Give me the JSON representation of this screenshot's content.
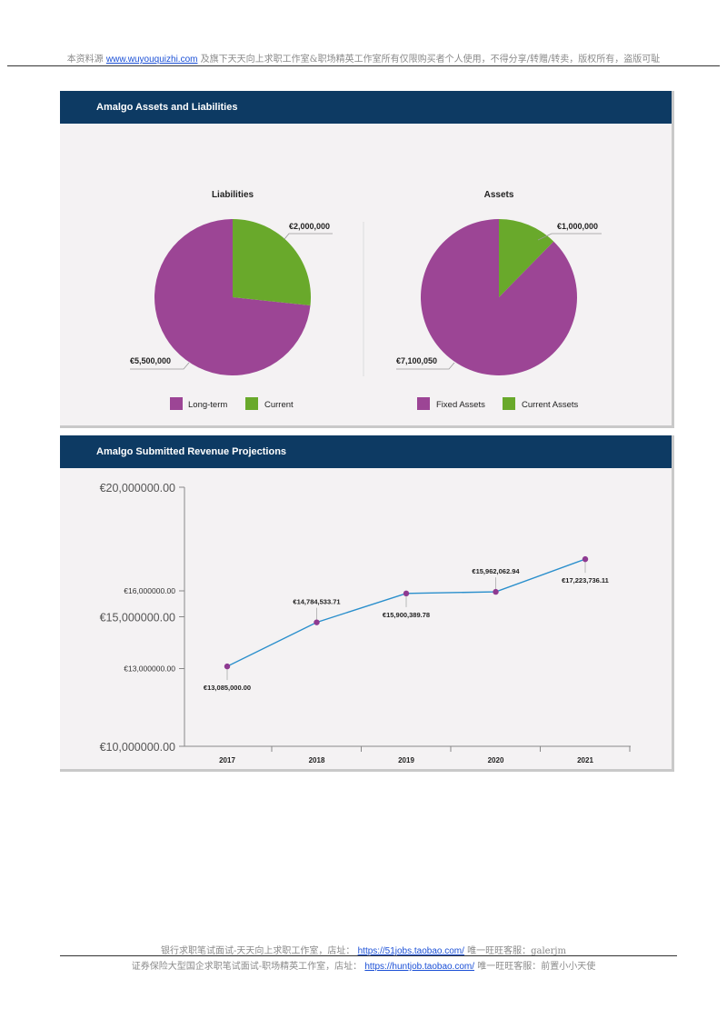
{
  "page_header": {
    "text_before": "本资料源",
    "link": "www.wuyouquizhi.com",
    "text_after": "及旗下天天向上求职工作室&职场精英工作室所有仅限购买者个人使用，不得分享/转赠/转卖，版权所有，盗版可耻"
  },
  "panel1": {
    "title": "Amalgo  Assets and Liabilities"
  },
  "panel2": {
    "title": "Amalgo Submitted Revenue Projections"
  },
  "chart_data": [
    {
      "type": "pie",
      "title": "Liabilities",
      "slices": [
        {
          "label": "Long-term",
          "value": 5500000,
          "display": "€5,500,000",
          "color": "#9c4595"
        },
        {
          "label": "Current",
          "value": 2000000,
          "display": "€2,000,000",
          "color": "#69a92b"
        }
      ],
      "legend": [
        "Long-term",
        "Current"
      ],
      "legend_position": "bottom"
    },
    {
      "type": "pie",
      "title": "Assets",
      "slices": [
        {
          "label": "Fixed Assets",
          "value": 7100050,
          "display": "€7,100,050",
          "color": "#9c4595"
        },
        {
          "label": "Current Assets",
          "value": 1000000,
          "display": "€1,000,000",
          "color": "#69a92b"
        }
      ],
      "legend": [
        "Fixed Assets",
        "Current Assets"
      ],
      "legend_position": "bottom"
    },
    {
      "type": "line",
      "x": [
        "2017",
        "2018",
        "2019",
        "2020",
        "2021"
      ],
      "series": [
        {
          "values": [
            13085000.0,
            14784533.71,
            15900389.78,
            15962062.94,
            17223736.11
          ],
          "labels": [
            "€13,085,000.00",
            "€14,784,533.71",
            "€15,900,389.78",
            "€15,962,062.94",
            "€17,223,736.11"
          ],
          "line_color": "#2a8fcc",
          "marker_color": "#8e3a91"
        }
      ],
      "y_ticks": [
        {
          "value": 10000000,
          "label": "€10,000000.00"
        },
        {
          "value": 13000000,
          "label": "€13,000000.00"
        },
        {
          "value": 15000000,
          "label": "€15,000000.00"
        },
        {
          "value": 16000000,
          "label": "€16,000000.00"
        },
        {
          "value": 20000000,
          "label": "€20,000000.00"
        }
      ],
      "ylim": [
        10000000,
        20000000
      ],
      "grid": false
    }
  ],
  "footer": {
    "line1_before": "银行求职笔试面试-天天向上求职工作室，店址：",
    "line1_link": "https://51jobs.taobao.com/",
    "line1_after": " 唯一旺旺客服：galerjm",
    "line2_before": "证券保险大型国企求职笔试面试-职场精英工作室，店址：",
    "line2_link": "https://huntjob.taobao.com/",
    "line2_after": " 唯一旺旺客服：前置小小天使"
  }
}
